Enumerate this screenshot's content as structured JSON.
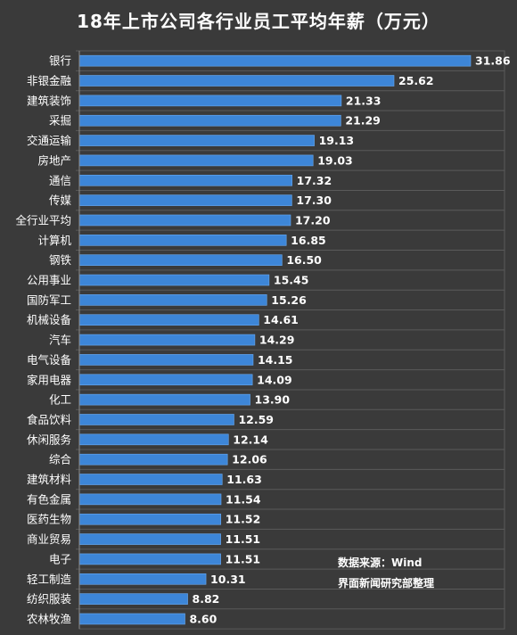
{
  "chart_data": {
    "type": "bar",
    "orientation": "horizontal",
    "title": "18年上市公司各行业员工平均年薪（万元）",
    "categories": [
      "银行",
      "非银金融",
      "建筑装饰",
      "采掘",
      "交通运输",
      "房地产",
      "通信",
      "传媒",
      "全行业平均",
      "计算机",
      "钢铁",
      "公用事业",
      "国防军工",
      "机械设备",
      "汽车",
      "电气设备",
      "家用电器",
      "化工",
      "食品饮料",
      "休闲服务",
      "综合",
      "建筑材料",
      "有色金属",
      "医药生物",
      "商业贸易",
      "电子",
      "轻工制造",
      "纺织服装",
      "农林牧渔"
    ],
    "values": [
      31.86,
      25.62,
      21.33,
      21.29,
      19.13,
      19.03,
      17.32,
      17.3,
      17.2,
      16.85,
      16.5,
      15.45,
      15.26,
      14.61,
      14.29,
      14.15,
      14.09,
      13.9,
      12.59,
      12.14,
      12.06,
      11.63,
      11.54,
      11.52,
      11.51,
      11.51,
      10.31,
      8.82,
      8.6
    ],
    "value_labels": [
      "31.86",
      "25.62",
      "21.33",
      "21.29",
      "19.13",
      "19.03",
      "17.32",
      "17.30",
      "17.20",
      "16.85",
      "16.50",
      "15.45",
      "15.26",
      "14.61",
      "14.29",
      "14.15",
      "14.09",
      "13.90",
      "12.59",
      "12.14",
      "12.06",
      "11.63",
      "11.54",
      "11.52",
      "11.51",
      "11.51",
      "10.31",
      "8.82",
      "8.60"
    ],
    "xlabel": "",
    "ylabel": "",
    "xlim": [
      0,
      31.86
    ],
    "grid": true,
    "colors": {
      "background": "#3a3a3a",
      "bar": "#3d86d8",
      "bar_edge": "#6aaaf0",
      "grid": "#5a5a5a",
      "text": "#ffffff"
    }
  },
  "source": {
    "line1": "数据来源：Wind",
    "line2": "界面新闻研究部整理"
  }
}
